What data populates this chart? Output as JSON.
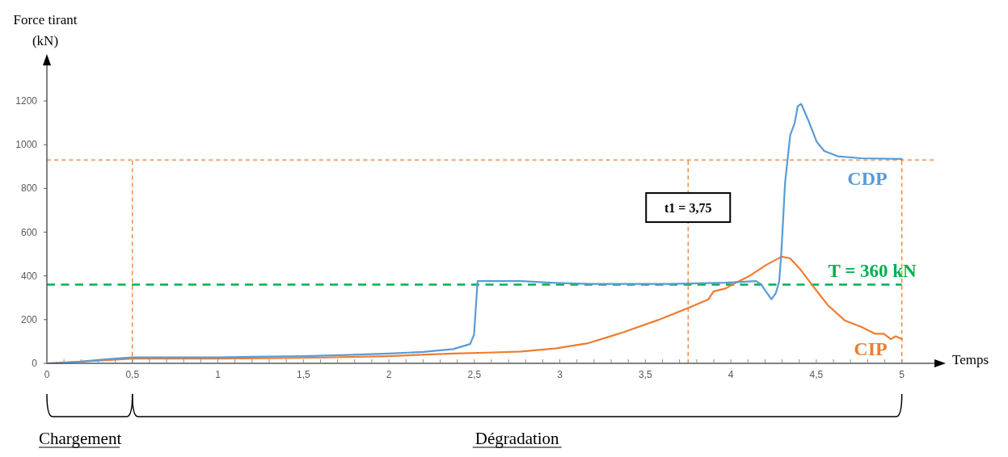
{
  "chart_data": {
    "type": "line",
    "xlabel": "Temps",
    "ylabel": "Force tirant\n(kN)",
    "xlim": [
      0,
      5.2
    ],
    "ylim": [
      0,
      1370
    ],
    "xticks": [
      0,
      {
        "value": 0.1,
        "label": null
      },
      {
        "value": 0.2,
        "label": null
      },
      {
        "value": 0.3,
        "label": null
      },
      {
        "value": 0.4,
        "label": null
      },
      {
        "value": 0.5,
        "label": "0,5"
      },
      {
        "value": 0.6,
        "label": null
      },
      {
        "value": 0.7,
        "label": null
      },
      {
        "value": 0.8,
        "label": null
      },
      {
        "value": 0.9,
        "label": null
      },
      1,
      {
        "value": 1.1,
        "label": null
      },
      {
        "value": 1.2,
        "label": null
      },
      {
        "value": 1.3,
        "label": null
      },
      {
        "value": 1.4,
        "label": null
      },
      {
        "value": 1.5,
        "label": "1,5"
      },
      {
        "value": 1.6,
        "label": null
      },
      {
        "value": 1.7,
        "label": null
      },
      {
        "value": 1.8,
        "label": null
      },
      {
        "value": 1.9,
        "label": null
      },
      2,
      {
        "value": 2.1,
        "label": null
      },
      {
        "value": 2.2,
        "label": null
      },
      {
        "value": 2.3,
        "label": null
      },
      {
        "value": 2.4,
        "label": null
      },
      {
        "value": 2.5,
        "label": "2,5"
      },
      {
        "value": 2.6,
        "label": null
      },
      {
        "value": 2.7,
        "label": null
      },
      {
        "value": 2.8,
        "label": null
      },
      {
        "value": 2.9,
        "label": null
      },
      3,
      {
        "value": 3.1,
        "label": null
      },
      {
        "value": 3.2,
        "label": null
      },
      {
        "value": 3.3,
        "label": null
      },
      {
        "value": 3.4,
        "label": null
      },
      {
        "value": 3.5,
        "label": "3,5"
      },
      {
        "value": 3.6,
        "label": null
      },
      {
        "value": 3.7,
        "label": null
      },
      {
        "value": 3.8,
        "label": null
      },
      {
        "value": 3.9,
        "label": null
      },
      4,
      {
        "value": 4.1,
        "label": null
      },
      {
        "value": 4.2,
        "label": null
      },
      {
        "value": 4.3,
        "label": null
      },
      {
        "value": 4.4,
        "label": null
      },
      {
        "value": 4.5,
        "label": "4,5"
      },
      {
        "value": 4.6,
        "label": null
      },
      {
        "value": 4.7,
        "label": null
      },
      {
        "value": 4.8,
        "label": null
      },
      {
        "value": 4.9,
        "label": null
      },
      5
    ],
    "yticks": [
      0,
      200,
      400,
      600,
      800,
      1000,
      1200
    ],
    "grid": false,
    "legend": false,
    "marker": "none",
    "line_style": "solid",
    "series": [
      {
        "name": "CDP",
        "color": "#5b9bd5",
        "x": [
          0,
          0.1,
          0.2,
          0.3,
          0.4,
          0.5,
          1.0,
          1.2,
          1.5,
          1.75,
          2.0,
          2.2,
          2.376,
          2.475,
          2.498,
          2.519,
          2.773,
          2.972,
          3.17,
          3.644,
          3.968,
          4.148,
          4.178,
          4.237,
          4.263,
          4.283,
          4.297,
          4.317,
          4.347,
          4.373,
          4.391,
          4.411,
          4.456,
          4.502,
          4.546,
          4.625,
          4.764,
          5.0
        ],
        "values": [
          0,
          2,
          8,
          15,
          22,
          27,
          27,
          30,
          33,
          38,
          45,
          52,
          65,
          88,
          130,
          376,
          376,
          368,
          363,
          363,
          369,
          376,
          360,
          293,
          321,
          376,
          531,
          826,
          1044,
          1098,
          1176,
          1187,
          1106,
          1013,
          971,
          947,
          938,
          935
        ]
      },
      {
        "name": "CIP",
        "color": "#ed7d31",
        "x": [
          0,
          0.3,
          0.5,
          1.0,
          1.5,
          2.0,
          2.376,
          2.574,
          2.773,
          2.972,
          3.17,
          3.371,
          3.57,
          3.644,
          3.769,
          3.869,
          3.899,
          3.968,
          4.028,
          4.108,
          4.207,
          4.297,
          4.347,
          4.406,
          4.466,
          4.566,
          4.665,
          4.764,
          4.844,
          4.894,
          4.935,
          4.965,
          5.0
        ],
        "values": [
          0,
          12,
          22,
          22,
          25,
          33,
          45,
          49,
          54,
          68,
          93,
          142,
          197,
          220,
          259,
          293,
          329,
          342,
          368,
          399,
          450,
          488,
          480,
          430,
          368,
          267,
          197,
          166,
          135,
          135,
          111,
          124,
          111
        ]
      }
    ],
    "ref_lines": [
      {
        "axis": "y",
        "value": 930,
        "color": "#ed7d31",
        "line_style": "dashed"
      },
      {
        "axis": "y",
        "value": 360,
        "label": "T = 360 kN",
        "color": "#00b050",
        "line_style": "dashed"
      },
      {
        "axis": "x",
        "value": 0.5,
        "color": "#ed7d31",
        "line_style": "dashed"
      },
      {
        "axis": "x",
        "value": 3.75,
        "label": "t1 = 3,75",
        "color": "#ed7d31",
        "line_style": "dashed"
      },
      {
        "axis": "x",
        "value": 5,
        "color": "#ed7d31",
        "line_style": "dashed"
      }
    ],
    "annotations": [
      "Chargement",
      "Dégradation"
    ]
  }
}
